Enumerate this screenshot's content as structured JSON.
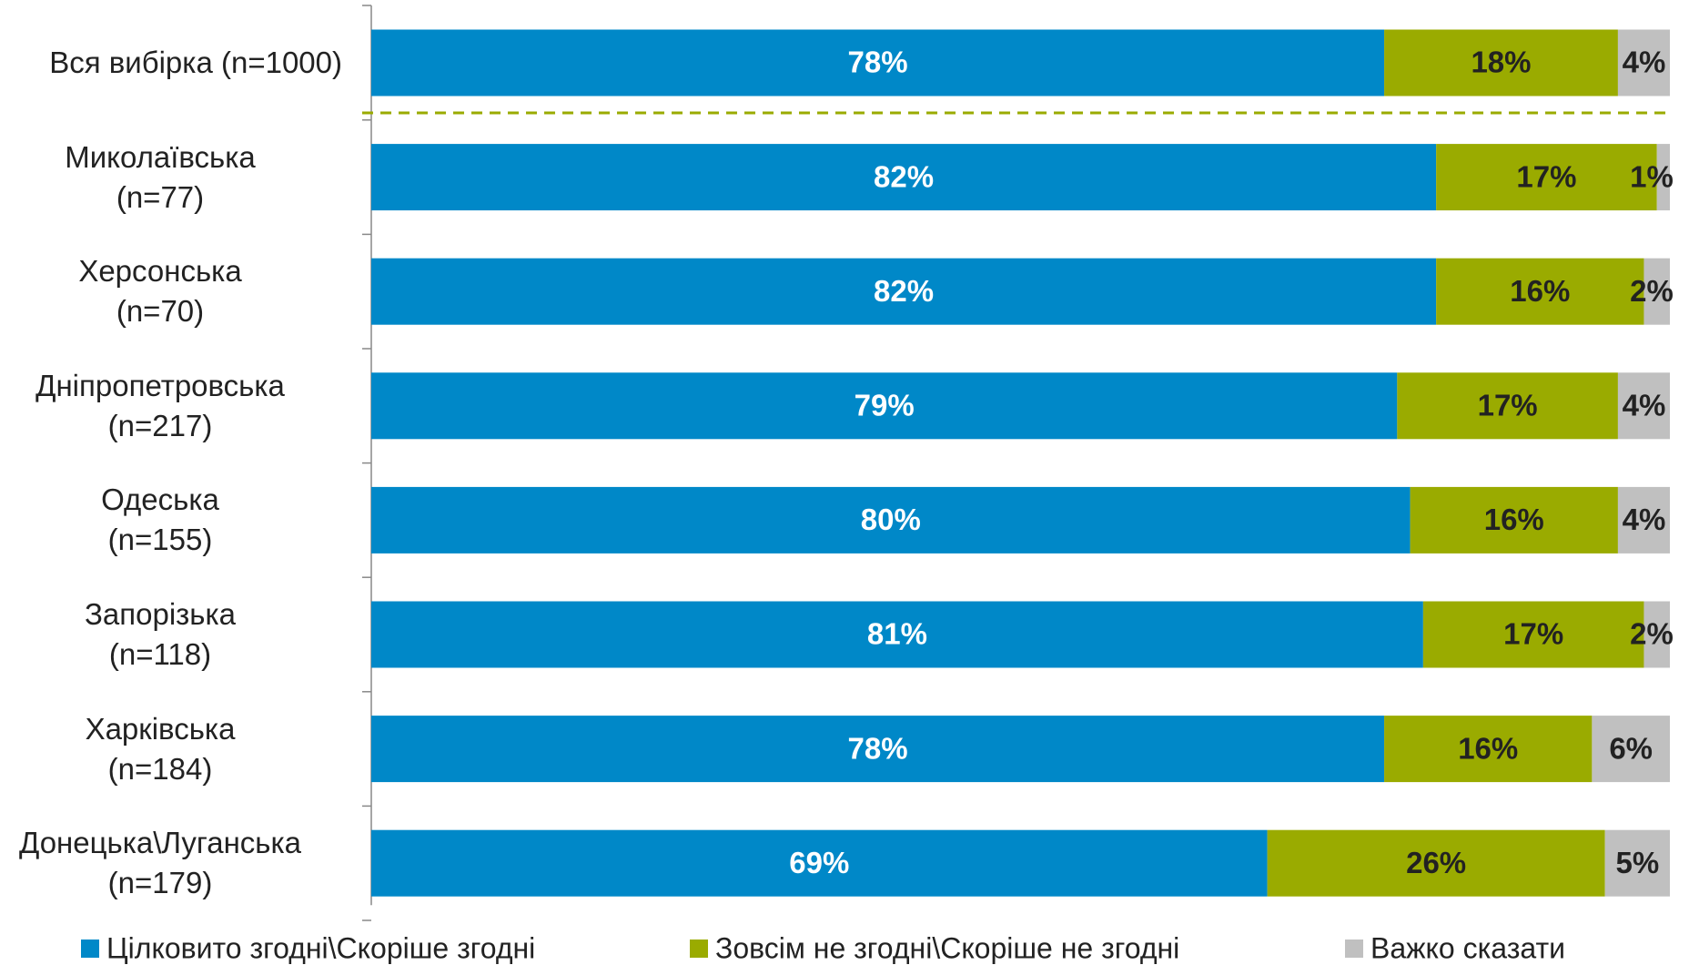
{
  "chart_data": {
    "type": "stacked-bar-horizontal",
    "categories": [
      "Вся вибірка (n=1000)",
      "Миколаївська\n(n=77)",
      "Херсонська\n(n=70)",
      "Дніпропетровська\n(n=217)",
      "Одеська\n(n=155)",
      "Запорізька\n(n=118)",
      "Харківська\n(n=184)",
      "Донецька\\Луганська\n(n=179)"
    ],
    "series": [
      {
        "name": "Цілковито згодні\\Скоріше згодні",
        "color": "#0088c8",
        "values": [
          78,
          82,
          82,
          79,
          80,
          81,
          78,
          69
        ],
        "value_labels": [
          "78%",
          "82%",
          "82%",
          "79%",
          "80%",
          "81%",
          "78%",
          "69%"
        ]
      },
      {
        "name": "Зовсім не згодні\\Скоріше не згодні",
        "color": "#9aab00",
        "values": [
          18,
          17,
          16,
          17,
          16,
          17,
          16,
          26
        ],
        "value_labels": [
          "18%",
          "17%",
          "16%",
          "17%",
          "16%",
          "17%",
          "16%",
          "26%"
        ]
      },
      {
        "name": "Важко сказати",
        "color": "#c0c0c0",
        "values": [
          4,
          1,
          2,
          4,
          4,
          2,
          6,
          5
        ],
        "value_labels": [
          "4%",
          "1%",
          "2%",
          "4%",
          "4%",
          "2%",
          "6%",
          "5%"
        ]
      }
    ]
  }
}
